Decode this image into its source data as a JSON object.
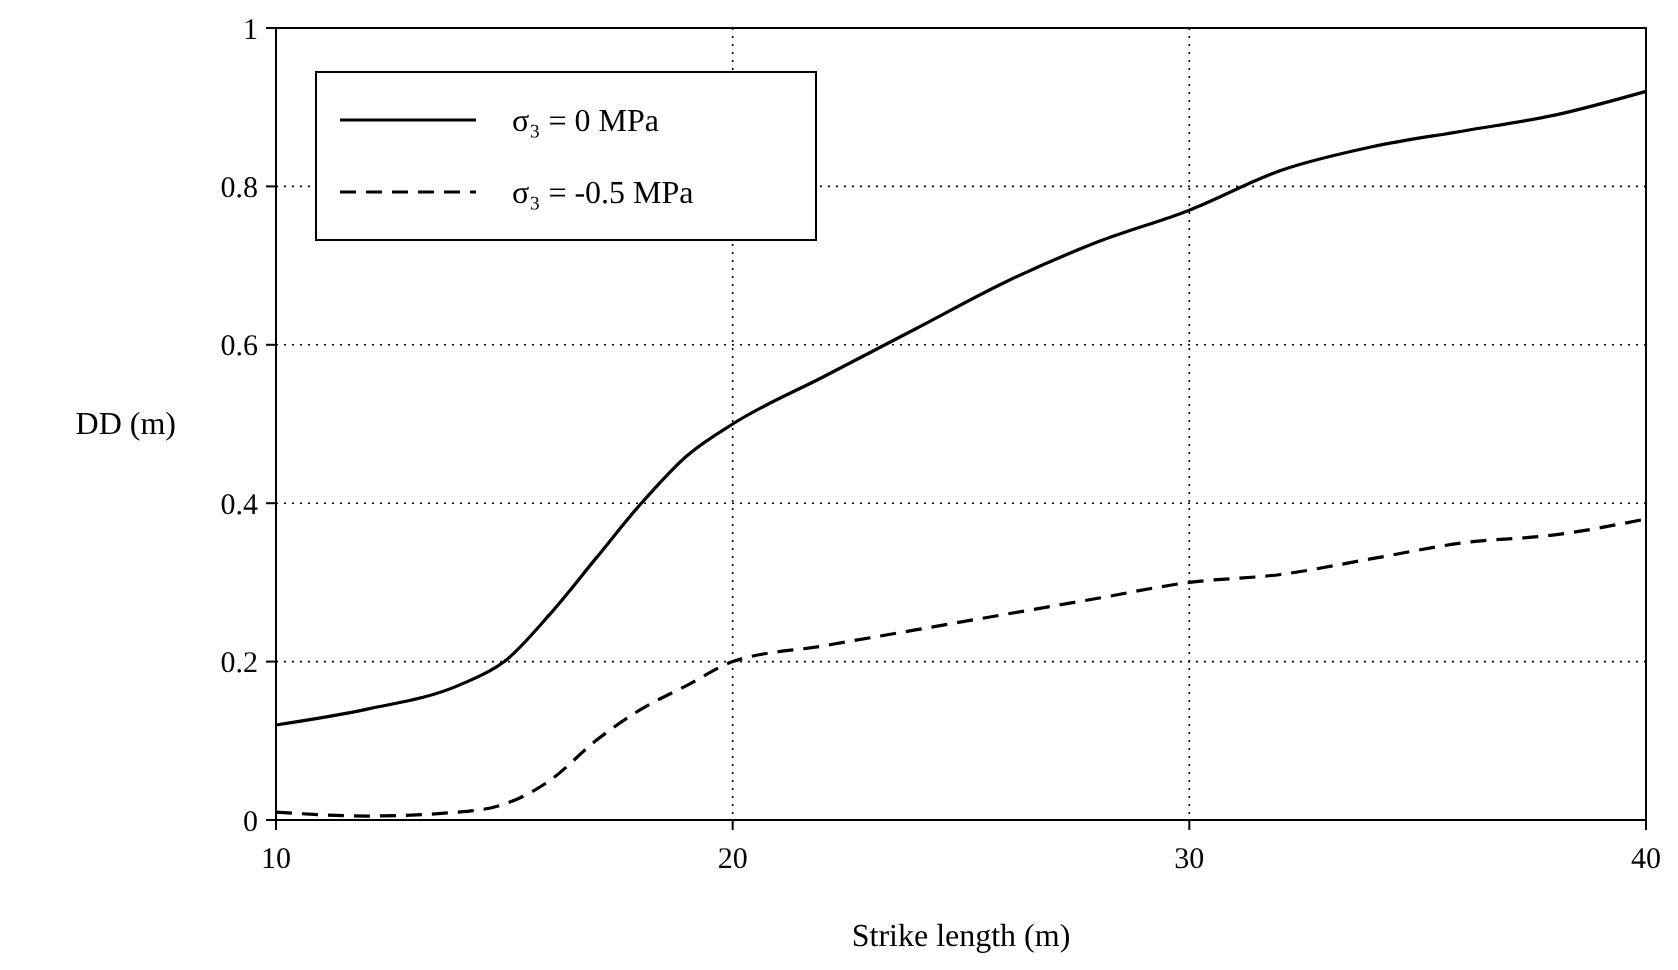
{
  "chart_data": {
    "type": "line",
    "xlabel": "Strike length (m)",
    "ylabel": "DD (m)",
    "x": [
      10,
      12,
      14,
      15,
      16,
      17,
      18,
      19,
      20,
      22,
      24,
      26,
      28,
      30,
      32,
      34,
      36,
      38,
      40
    ],
    "series": [
      {
        "name": "σ₃ = 0 MPa",
        "color": "#000000",
        "line_style": "solid",
        "values": [
          0.12,
          0.14,
          0.17,
          0.2,
          0.26,
          0.33,
          0.4,
          0.46,
          0.5,
          0.56,
          0.62,
          0.68,
          0.73,
          0.77,
          0.82,
          0.85,
          0.87,
          0.89,
          0.92
        ]
      },
      {
        "name": "σ₃ = -0.5 MPa",
        "color": "#000000",
        "line_style": "dashed",
        "values": [
          0.01,
          0.005,
          0.01,
          0.02,
          0.05,
          0.1,
          0.14,
          0.17,
          0.2,
          0.22,
          0.24,
          0.26,
          0.28,
          0.3,
          0.31,
          0.33,
          0.35,
          0.36,
          0.38
        ]
      }
    ],
    "xlim": [
      10,
      40
    ],
    "xticks": [
      10,
      20,
      30,
      40
    ],
    "ylim": [
      0,
      1
    ],
    "yticks": [
      0,
      0.2,
      0.4,
      0.6,
      0.8,
      1
    ],
    "grid": true,
    "legend": "top left",
    "marker": "none"
  }
}
